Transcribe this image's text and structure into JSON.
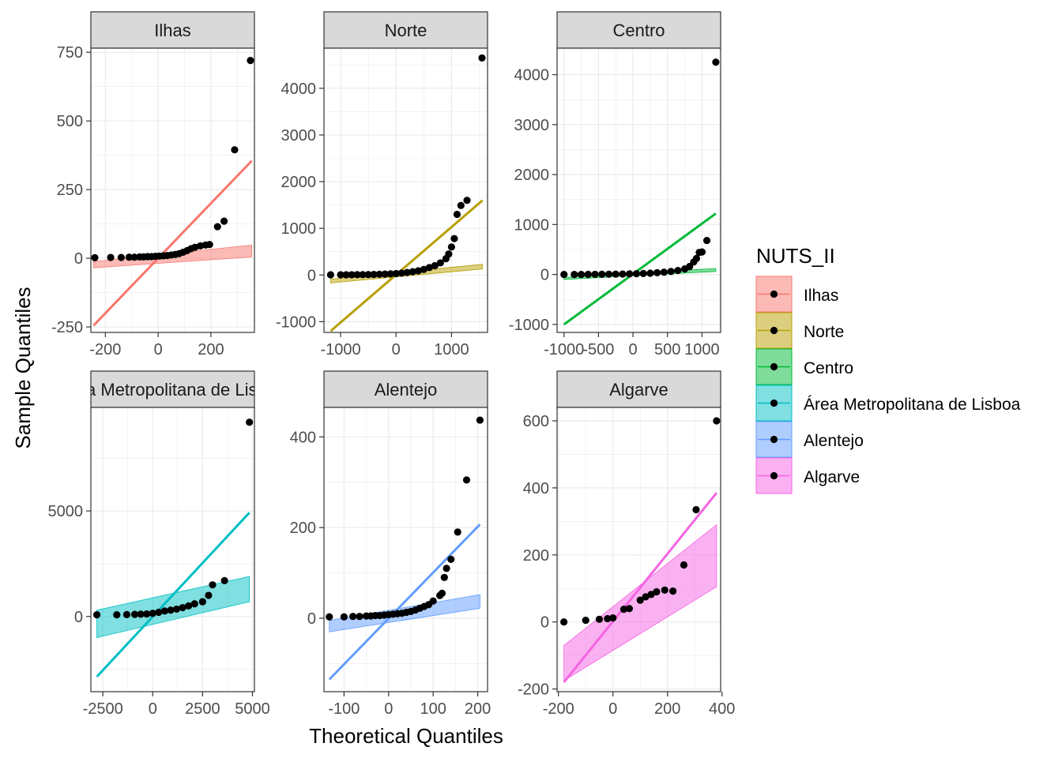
{
  "chart_data": {
    "type": "scatter",
    "xlabel": "Theoretical Quantiles",
    "ylabel": "Sample Quantiles",
    "legend": {
      "title": "NUTS_II",
      "placement": "right",
      "entries": [
        {
          "label": "Ilhas",
          "color": "#F8766D"
        },
        {
          "label": "Norte",
          "color": "#B79F00"
        },
        {
          "label": "Centro",
          "color": "#00BA38"
        },
        {
          "label": "Área Metropolitana de Lisboa",
          "color": "#00BFC4"
        },
        {
          "label": "Alentejo",
          "color": "#619CFF"
        },
        {
          "label": "Algarve",
          "color": "#F564E3"
        }
      ]
    },
    "grid": true,
    "panels": [
      {
        "title": "Ilhas",
        "color": "#F8766D",
        "xlim": [
          -255,
          365
        ],
        "ylim": [
          -270,
          765
        ],
        "xticks": [
          -200,
          0,
          200
        ],
        "xtick_labels": [
          "-200",
          "0",
          "200"
        ],
        "yticks": [
          -250,
          0,
          250,
          500,
          750
        ],
        "ytick_labels": [
          "-250",
          "0",
          "250",
          "500",
          "750"
        ],
        "line": [
          [
            -245,
            -245
          ],
          [
            355,
            355
          ]
        ],
        "band": [
          [
            -245,
            -35,
            -12
          ],
          [
            355,
            5,
            48
          ]
        ],
        "points": [
          [
            -240,
            2
          ],
          [
            -180,
            3
          ],
          [
            -140,
            3
          ],
          [
            -110,
            4
          ],
          [
            -90,
            4
          ],
          [
            -70,
            5
          ],
          [
            -55,
            5
          ],
          [
            -40,
            6
          ],
          [
            -25,
            6
          ],
          [
            -10,
            7
          ],
          [
            5,
            8
          ],
          [
            20,
            9
          ],
          [
            35,
            10
          ],
          [
            50,
            12
          ],
          [
            65,
            14
          ],
          [
            80,
            17
          ],
          [
            95,
            22
          ],
          [
            110,
            28
          ],
          [
            125,
            35
          ],
          [
            140,
            40
          ],
          [
            160,
            45
          ],
          [
            180,
            48
          ],
          [
            195,
            50
          ],
          [
            225,
            115
          ],
          [
            250,
            135
          ],
          [
            290,
            395
          ],
          [
            350,
            720
          ]
        ]
      },
      {
        "title": "Norte",
        "color": "#B79F00",
        "xlim": [
          -1300,
          1650
        ],
        "ylim": [
          -1230,
          4860
        ],
        "xticks": [
          -1000,
          0,
          1000
        ],
        "xtick_labels": [
          "-1000",
          "0",
          "1000"
        ],
        "yticks": [
          -1000,
          0,
          1000,
          2000,
          3000,
          4000
        ],
        "ytick_labels": [
          "-1000",
          "0",
          "1000",
          "2000",
          "3000",
          "4000"
        ],
        "line": [
          [
            -1180,
            -1200
          ],
          [
            1560,
            1600
          ]
        ],
        "band": [
          [
            -1180,
            -170,
            -90
          ],
          [
            1560,
            130,
            230
          ]
        ],
        "points": [
          [
            -1180,
            5
          ],
          [
            -1000,
            5
          ],
          [
            -900,
            5
          ],
          [
            -800,
            6
          ],
          [
            -700,
            7
          ],
          [
            -600,
            8
          ],
          [
            -500,
            10
          ],
          [
            -400,
            12
          ],
          [
            -300,
            15
          ],
          [
            -200,
            20
          ],
          [
            -100,
            25
          ],
          [
            0,
            30
          ],
          [
            100,
            40
          ],
          [
            200,
            55
          ],
          [
            300,
            70
          ],
          [
            400,
            90
          ],
          [
            500,
            120
          ],
          [
            600,
            160
          ],
          [
            700,
            200
          ],
          [
            800,
            260
          ],
          [
            900,
            350
          ],
          [
            950,
            450
          ],
          [
            1000,
            600
          ],
          [
            1050,
            780
          ],
          [
            1100,
            1300
          ],
          [
            1170,
            1490
          ],
          [
            1280,
            1600
          ],
          [
            1550,
            4650
          ]
        ]
      },
      {
        "title": "Centro",
        "color": "#00BA38",
        "xlim": [
          -1100,
          1270
        ],
        "ylim": [
          -1160,
          4530
        ],
        "xticks": [
          -1000,
          -500,
          0,
          500,
          1000
        ],
        "xtick_labels": [
          "-1000",
          "-500",
          "0",
          "500",
          "1000"
        ],
        "yticks": [
          -1000,
          0,
          1000,
          2000,
          3000,
          4000
        ],
        "ytick_labels": [
          "-1000",
          "0",
          "1000",
          "2000",
          "3000",
          "4000"
        ],
        "line": [
          [
            -1000,
            -1000
          ],
          [
            1200,
            1220
          ]
        ],
        "band": [
          [
            -1000,
            -100,
            -60
          ],
          [
            1200,
            60,
            120
          ]
        ],
        "points": [
          [
            -1000,
            0
          ],
          [
            -850,
            0
          ],
          [
            -750,
            0
          ],
          [
            -650,
            2
          ],
          [
            -550,
            3
          ],
          [
            -450,
            4
          ],
          [
            -350,
            5
          ],
          [
            -250,
            7
          ],
          [
            -150,
            9
          ],
          [
            -50,
            12
          ],
          [
            50,
            15
          ],
          [
            150,
            20
          ],
          [
            250,
            25
          ],
          [
            350,
            35
          ],
          [
            450,
            45
          ],
          [
            550,
            60
          ],
          [
            650,
            80
          ],
          [
            750,
            110
          ],
          [
            820,
            160
          ],
          [
            880,
            250
          ],
          [
            920,
            320
          ],
          [
            960,
            440
          ],
          [
            1000,
            450
          ],
          [
            1070,
            680
          ],
          [
            1200,
            4250
          ]
        ]
      },
      {
        "title": "Área Metropolitana de Lisboa",
        "color": "#00BFC4",
        "xlim": [
          -3100,
          5100
        ],
        "ylim": [
          -3560,
          9900
        ],
        "xticks": [
          -2500,
          0,
          2500,
          5000
        ],
        "xtick_labels": [
          "-2500",
          "0",
          "2500",
          "5000"
        ],
        "yticks": [
          0,
          5000
        ],
        "ytick_labels": [
          "0",
          "5000"
        ],
        "line": [
          [
            -2800,
            -2850
          ],
          [
            4850,
            4920
          ]
        ],
        "band": [
          [
            -2800,
            -1000,
            300
          ],
          [
            4850,
            700,
            1900
          ]
        ],
        "points": [
          [
            -2800,
            80
          ],
          [
            -1800,
            80
          ],
          [
            -1300,
            90
          ],
          [
            -900,
            100
          ],
          [
            -600,
            110
          ],
          [
            -300,
            120
          ],
          [
            0,
            150
          ],
          [
            300,
            200
          ],
          [
            600,
            260
          ],
          [
            900,
            300
          ],
          [
            1200,
            350
          ],
          [
            1500,
            420
          ],
          [
            1800,
            500
          ],
          [
            2100,
            600
          ],
          [
            2500,
            700
          ],
          [
            2800,
            1000
          ],
          [
            3000,
            1500
          ],
          [
            3600,
            1700
          ],
          [
            4850,
            9200
          ]
        ]
      },
      {
        "title": "Alentejo",
        "color": "#619CFF",
        "xlim": [
          -145,
          222
        ],
        "ylim": [
          -162,
          465
        ],
        "xticks": [
          -100,
          0,
          100,
          200
        ],
        "xtick_labels": [
          "-100",
          "0",
          "100",
          "200"
        ],
        "yticks": [
          0,
          200,
          400
        ],
        "ytick_labels": [
          "0",
          "200",
          "400"
        ],
        "line": [
          [
            -133,
            -135
          ],
          [
            205,
            207
          ]
        ],
        "band": [
          [
            -133,
            -30,
            -5
          ],
          [
            205,
            22,
            52
          ]
        ],
        "points": [
          [
            -133,
            3
          ],
          [
            -100,
            3
          ],
          [
            -80,
            4
          ],
          [
            -65,
            4
          ],
          [
            -50,
            5
          ],
          [
            -40,
            5
          ],
          [
            -30,
            6
          ],
          [
            -20,
            6
          ],
          [
            -10,
            7
          ],
          [
            0,
            8
          ],
          [
            10,
            9
          ],
          [
            20,
            10
          ],
          [
            30,
            11
          ],
          [
            40,
            13
          ],
          [
            50,
            15
          ],
          [
            60,
            18
          ],
          [
            70,
            22
          ],
          [
            80,
            26
          ],
          [
            90,
            30
          ],
          [
            100,
            38
          ],
          [
            115,
            50
          ],
          [
            120,
            55
          ],
          [
            125,
            90
          ],
          [
            130,
            110
          ],
          [
            140,
            130
          ],
          [
            155,
            190
          ],
          [
            175,
            305
          ],
          [
            205,
            437
          ]
        ]
      },
      {
        "title": "Algarve",
        "color": "#F564E3",
        "xlim": [
          -205,
          395
        ],
        "ylim": [
          -208,
          640
        ],
        "xticks": [
          -200,
          0,
          200,
          400
        ],
        "xtick_labels": [
          "-200",
          "0",
          "200",
          "400"
        ],
        "yticks": [
          -200,
          0,
          200,
          400,
          600
        ],
        "ytick_labels": [
          "-200",
          "0",
          "200",
          "400",
          "600"
        ],
        "line": [
          [
            -180,
            -180
          ],
          [
            380,
            385
          ]
        ],
        "band": [
          [
            -180,
            -175,
            -70
          ],
          [
            380,
            105,
            290
          ]
        ],
        "points": [
          [
            -180,
            0
          ],
          [
            -100,
            5
          ],
          [
            -50,
            8
          ],
          [
            -20,
            10
          ],
          [
            0,
            12
          ],
          [
            40,
            38
          ],
          [
            60,
            40
          ],
          [
            100,
            65
          ],
          [
            120,
            75
          ],
          [
            140,
            82
          ],
          [
            160,
            90
          ],
          [
            190,
            95
          ],
          [
            220,
            92
          ],
          [
            260,
            170
          ],
          [
            305,
            335
          ],
          [
            380,
            600
          ]
        ]
      }
    ]
  }
}
